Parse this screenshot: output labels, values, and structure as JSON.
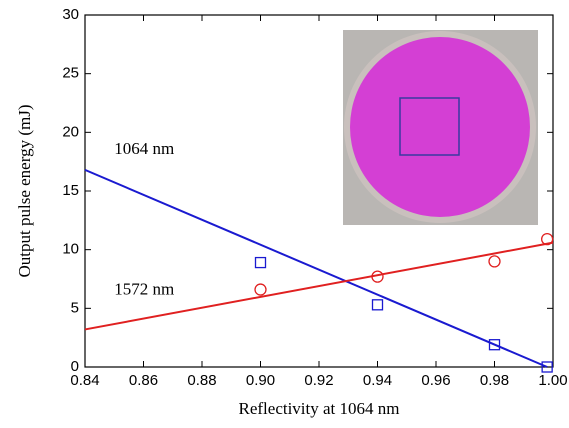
{
  "chart_data": {
    "type": "scatter",
    "xlabel": "Reflectivity at 1064 nm",
    "ylabel": "Output pulse energy (mJ)",
    "xlim": [
      0.84,
      1.0
    ],
    "ylim": [
      0,
      30
    ],
    "xticks": [
      0.84,
      0.86,
      0.88,
      {
        "value": 0.9,
        "label": "0.90"
      },
      0.92,
      0.94,
      0.96,
      0.98,
      {
        "value": 1.0,
        "label": "1.00"
      }
    ],
    "yticks": [
      0,
      5,
      10,
      15,
      20,
      25,
      30
    ],
    "series": [
      {
        "mode": "markers",
        "marker": "square",
        "color": "#1a1ad0",
        "x": [
          0.9,
          0.94,
          0.98,
          0.998
        ],
        "values": [
          8.9,
          5.3,
          1.9,
          0
        ]
      },
      {
        "mode": "markers",
        "marker": "circle",
        "color": "#e02020",
        "x": [
          0.9,
          0.94,
          0.98,
          0.998
        ],
        "values": [
          6.6,
          7.7,
          9.0,
          10.9
        ]
      },
      {
        "mode": "line",
        "color": "#1a1ad0",
        "x": [
          0.84,
          0.998
        ],
        "values": [
          16.8,
          0
        ]
      },
      {
        "mode": "line",
        "color": "#e02020",
        "x": [
          0.84,
          1.0
        ],
        "values": [
          3.2,
          10.6
        ]
      }
    ],
    "annotations": [
      {
        "text": "1064 nm",
        "color": "#1a1ad0",
        "x": 0.85,
        "y": 18.5
      },
      {
        "text": "1572 nm",
        "color": "#e02020",
        "x": 0.85,
        "y": 6.5
      }
    ]
  }
}
